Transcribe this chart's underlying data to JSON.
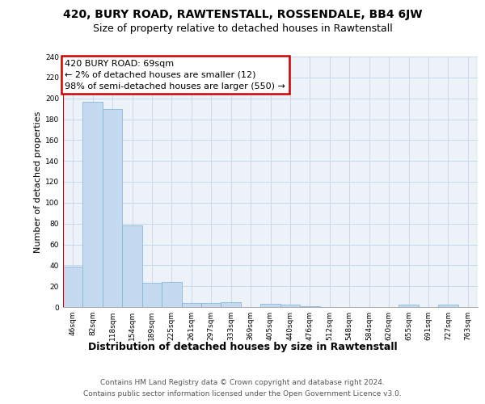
{
  "title1": "420, BURY ROAD, RAWTENSTALL, ROSSENDALE, BB4 6JW",
  "title2": "Size of property relative to detached houses in Rawtenstall",
  "xlabel": "Distribution of detached houses by size in Rawtenstall",
  "ylabel": "Number of detached properties",
  "footer1": "Contains HM Land Registry data © Crown copyright and database right 2024.",
  "footer2": "Contains public sector information licensed under the Open Government Licence v3.0.",
  "annotation_line1": "420 BURY ROAD: 69sqm",
  "annotation_line2": "← 2% of detached houses are smaller (12)",
  "annotation_line3": "98% of semi-detached houses are larger (550) →",
  "bar_color": "#c5d9f0",
  "bar_edge_color": "#7ab0d8",
  "highlight_color": "#cc0000",
  "bins": [
    "46sqm",
    "82sqm",
    "118sqm",
    "154sqm",
    "189sqm",
    "225sqm",
    "261sqm",
    "297sqm",
    "333sqm",
    "369sqm",
    "405sqm",
    "440sqm",
    "476sqm",
    "512sqm",
    "548sqm",
    "584sqm",
    "620sqm",
    "655sqm",
    "691sqm",
    "727sqm",
    "763sqm"
  ],
  "values": [
    39,
    197,
    190,
    78,
    23,
    24,
    4,
    4,
    5,
    0,
    3,
    2,
    1,
    0,
    0,
    0,
    0,
    2,
    0,
    2,
    0
  ],
  "red_line_x": -0.5,
  "ylim": [
    0,
    240
  ],
  "yticks": [
    0,
    20,
    40,
    60,
    80,
    100,
    120,
    140,
    160,
    180,
    200,
    220,
    240
  ],
  "bg_color": "#edf2f8",
  "grid_color": "#c8d8ea",
  "title1_fontsize": 10,
  "title2_fontsize": 9,
  "xlabel_fontsize": 9,
  "ylabel_fontsize": 8,
  "tick_fontsize": 6.5,
  "footer_fontsize": 6.5,
  "annot_fontsize": 8
}
